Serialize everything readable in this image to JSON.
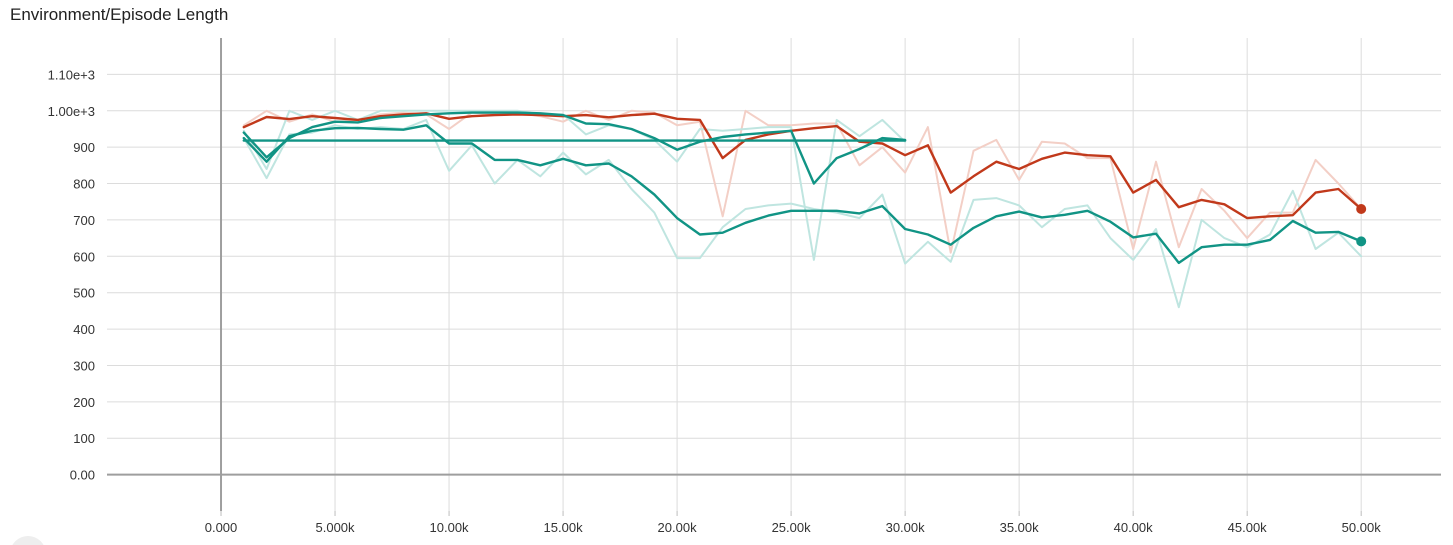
{
  "title": "Environment/Episode Length",
  "chart_data": {
    "type": "line",
    "title": "Environment/Episode Length",
    "xlabel": "",
    "ylabel": "",
    "xlim": [
      -5000,
      53500
    ],
    "ylim": [
      -100,
      1200
    ],
    "x_ticks": [
      0,
      5000,
      10000,
      15000,
      20000,
      25000,
      30000,
      35000,
      40000,
      45000,
      50000
    ],
    "x_tick_labels": [
      "0.000",
      "5.000k",
      "10.00k",
      "15.00k",
      "20.00k",
      "25.00k",
      "30.00k",
      "35.00k",
      "40.00k",
      "45.00k",
      "50.00k"
    ],
    "y_ticks": [
      0,
      100,
      200,
      300,
      400,
      500,
      600,
      700,
      800,
      900,
      1000,
      1100
    ],
    "y_tick_labels": [
      "0.00",
      "100",
      "200",
      "300",
      "400",
      "500",
      "600",
      "700",
      "800",
      "900",
      "1.00e+3",
      "1.10e+3"
    ],
    "grid": true,
    "colors": {
      "orange": "#c1391b",
      "orange_raw": "#f3cfc6",
      "teal": "#119485",
      "teal_raw": "#bfe5e0"
    },
    "series": [
      {
        "color": "#f3cfc6",
        "x": [
          1000,
          2000,
          3000,
          4000,
          5000,
          6000,
          7000,
          8000,
          9000,
          10000,
          11000,
          12000,
          13000,
          14000,
          15000,
          16000,
          17000,
          18000,
          19000,
          20000,
          21000,
          22000,
          23000,
          24000,
          25000,
          26000,
          27000,
          28000,
          29000,
          30000,
          31000,
          32000,
          33000,
          34000,
          35000,
          36000,
          37000,
          38000,
          39000,
          40000,
          41000,
          42000,
          43000,
          44000,
          45000,
          46000,
          47000,
          48000,
          49000,
          50000
        ],
        "y": [
          960,
          1000,
          970,
          990,
          970,
          975,
          990,
          995,
          990,
          950,
          995,
          990,
          995,
          985,
          970,
          1000,
          975,
          1000,
          995,
          960,
          970,
          710,
          1000,
          960,
          960,
          965,
          965,
          850,
          900,
          830,
          955,
          610,
          890,
          920,
          810,
          915,
          910,
          870,
          870,
          620,
          860,
          625,
          785,
          725,
          650,
          720,
          720,
          865,
          800,
          730
        ]
      },
      {
        "color": "#bfe5e0",
        "x": [
          1000,
          2000,
          3000,
          4000,
          5000,
          6000,
          7000,
          8000,
          9000,
          10000,
          11000,
          12000,
          13000,
          14000,
          15000,
          16000,
          17000,
          18000,
          19000,
          20000,
          21000,
          22000,
          23000,
          24000,
          25000,
          26000,
          27000,
          28000,
          29000,
          30000
        ],
        "y": [
          945,
          840,
          1000,
          975,
          1000,
          975,
          1000,
          1000,
          1000,
          1000,
          1000,
          1000,
          1000,
          990,
          990,
          935,
          960,
          950,
          920,
          860,
          950,
          945,
          950,
          955,
          955,
          590,
          975,
          930,
          975,
          915
        ]
      },
      {
        "color": "#bfe5e0",
        "x": [
          1000,
          2000,
          3000,
          4000,
          5000,
          6000,
          7000,
          8000,
          9000,
          10000,
          11000,
          12000,
          13000,
          14000,
          15000,
          16000,
          17000,
          18000,
          19000,
          20000,
          21000,
          22000,
          23000,
          24000,
          25000,
          26000,
          27000,
          28000,
          29000,
          30000,
          31000,
          32000,
          33000,
          34000,
          35000,
          36000,
          37000,
          38000,
          39000,
          40000,
          41000,
          42000,
          43000,
          44000,
          45000,
          46000,
          47000,
          48000,
          49000,
          50000
        ],
        "y": [
          925,
          815,
          935,
          940,
          960,
          950,
          955,
          950,
          975,
          835,
          905,
          800,
          865,
          820,
          885,
          825,
          865,
          785,
          720,
          595,
          595,
          680,
          730,
          740,
          745,
          730,
          720,
          705,
          770,
          580,
          640,
          585,
          755,
          760,
          740,
          680,
          730,
          740,
          650,
          590,
          675,
          460,
          700,
          650,
          625,
          660,
          780,
          620,
          665,
          600
        ]
      },
      {
        "name": "",
        "color": "#c1391b",
        "x": [
          1000,
          2000,
          3000,
          4000,
          5000,
          6000,
          7000,
          8000,
          9000,
          10000,
          11000,
          12000,
          13000,
          14000,
          15000,
          16000,
          17000,
          18000,
          19000,
          20000,
          21000,
          22000,
          23000,
          24000,
          25000,
          26000,
          27000,
          28000,
          29000,
          30000,
          31000,
          32000,
          33000,
          34000,
          35000,
          36000,
          37000,
          38000,
          39000,
          40000,
          41000,
          42000,
          43000,
          44000,
          45000,
          46000,
          47000,
          48000,
          49000,
          50000
        ],
        "y": [
          955,
          983,
          977,
          985,
          980,
          975,
          985,
          990,
          993,
          978,
          985,
          988,
          990,
          988,
          985,
          988,
          982,
          988,
          992,
          978,
          975,
          870,
          920,
          935,
          945,
          952,
          958,
          915,
          910,
          878,
          905,
          775,
          820,
          860,
          840,
          868,
          885,
          878,
          875,
          775,
          810,
          735,
          755,
          743,
          705,
          710,
          713,
          775,
          785,
          730
        ],
        "end_marker": true
      },
      {
        "name": "",
        "color": "#119485",
        "x": [
          1000,
          2000,
          3000,
          4000,
          5000,
          6000,
          7000,
          8000,
          9000,
          10000,
          11000,
          12000,
          13000,
          14000,
          15000,
          16000,
          17000,
          18000,
          19000,
          20000,
          21000,
          22000,
          23000,
          24000,
          25000,
          26000,
          27000,
          28000,
          29000,
          30000
        ],
        "y": [
          940,
          872,
          925,
          955,
          970,
          968,
          980,
          985,
          990,
          993,
          995,
          995,
          995,
          993,
          988,
          965,
          963,
          950,
          925,
          893,
          915,
          928,
          935,
          940,
          945,
          800,
          870,
          895,
          925,
          920
        ]
      },
      {
        "name": "",
        "color": "#119485",
        "x": [
          1000,
          2000,
          3000,
          4000,
          5000,
          6000,
          7000,
          8000,
          9000,
          10000,
          11000,
          12000,
          13000,
          14000,
          15000,
          16000,
          17000,
          18000,
          19000,
          20000,
          21000,
          22000,
          23000,
          24000,
          25000,
          26000,
          27000,
          28000,
          29000,
          30000,
          31000,
          32000,
          33000,
          34000,
          35000,
          36000,
          37000,
          38000,
          39000,
          40000,
          41000,
          42000,
          43000,
          44000,
          45000,
          46000,
          47000,
          48000,
          49000,
          50000
        ],
        "y": [
          925,
          860,
          930,
          945,
          952,
          953,
          950,
          948,
          960,
          910,
          910,
          865,
          865,
          850,
          868,
          850,
          855,
          820,
          770,
          705,
          660,
          665,
          692,
          712,
          725,
          725,
          725,
          718,
          738,
          675,
          660,
          632,
          678,
          710,
          723,
          707,
          714,
          725,
          695,
          652,
          662,
          582,
          625,
          632,
          632,
          645,
          697,
          665,
          667,
          641
        ],
        "end_marker": true
      },
      {
        "name": "",
        "color": "#119485",
        "x": [
          1000,
          10000,
          20000,
          30000
        ],
        "y": [
          918,
          918,
          918,
          918
        ]
      }
    ]
  }
}
